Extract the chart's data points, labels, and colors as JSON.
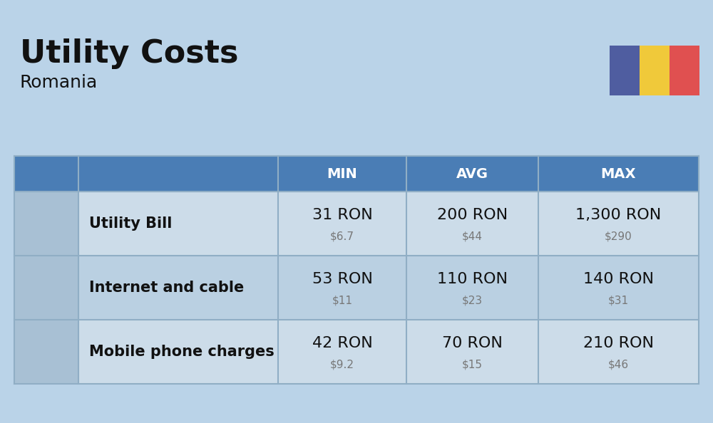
{
  "title": "Utility Costs",
  "subtitle": "Romania",
  "background_color": "#bad3e8",
  "header_bg_color": "#4a7db5",
  "header_text_color": "#ffffff",
  "row_bg_color_light": "#ccdce9",
  "row_bg_color_dark": "#bad0e2",
  "icon_col_bg": "#a8c0d4",
  "columns": [
    "",
    "",
    "MIN",
    "AVG",
    "MAX"
  ],
  "rows": [
    {
      "label": "Utility Bill",
      "min_ron": "31 RON",
      "min_usd": "$6.7",
      "avg_ron": "200 RON",
      "avg_usd": "$44",
      "max_ron": "1,300 RON",
      "max_usd": "$290"
    },
    {
      "label": "Internet and cable",
      "min_ron": "53 RON",
      "min_usd": "$11",
      "avg_ron": "110 RON",
      "avg_usd": "$23",
      "max_ron": "140 RON",
      "max_usd": "$31"
    },
    {
      "label": "Mobile phone charges",
      "min_ron": "42 RON",
      "min_usd": "$9.2",
      "avg_ron": "70 RON",
      "avg_usd": "$15",
      "max_ron": "210 RON",
      "max_usd": "$46"
    }
  ],
  "flag_colors": [
    "#4f5da0",
    "#f0c93a",
    "#e05050"
  ],
  "ron_fontsize": 16,
  "usd_fontsize": 11,
  "label_fontsize": 15,
  "header_fontsize": 14,
  "title_fontsize": 32,
  "subtitle_fontsize": 18,
  "divider_color": "#90aec5",
  "text_dark": "#111111",
  "text_gray": "#777777"
}
